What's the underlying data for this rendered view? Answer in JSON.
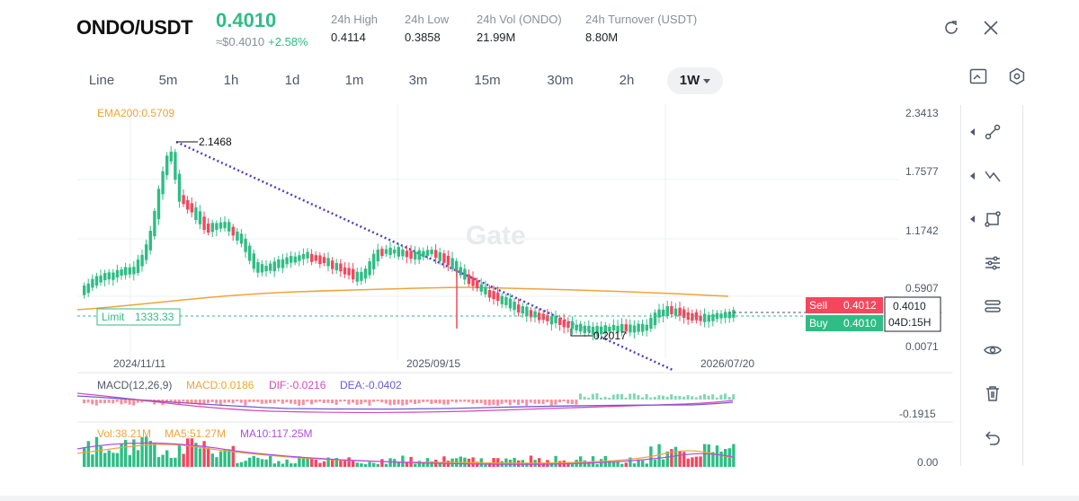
{
  "header": {
    "pair": "ONDO/USDT",
    "last_price": "0.4010",
    "fiat_price": "≈$0.4010",
    "change_pct": "+2.58%",
    "stats": [
      {
        "label": "24h  High",
        "value": "0.4114"
      },
      {
        "label": "24h  Low",
        "value": "0.3858"
      },
      {
        "label": "24h  Vol (ONDO)",
        "value": "21.99M"
      },
      {
        "label": "24h  Turnover (USDT)",
        "value": "8.80M"
      }
    ]
  },
  "timeframes": [
    "Line",
    "5m",
    "1h",
    "1d",
    "1m",
    "3m",
    "15m",
    "30m",
    "2h",
    "1W"
  ],
  "active_timeframe": "1W",
  "chart": {
    "ema_label": "EMA200:0.5709",
    "watermark": "Gate",
    "price_axis": [
      "2.3413",
      "1.7577",
      "1.1742",
      "0.5907",
      "0.0071"
    ],
    "date_axis": [
      "2024/11/11",
      "2025/09/15",
      "2026/07/20"
    ],
    "high_marker": "2.1468",
    "low_marker": "0.2017",
    "limit_label": "Limit",
    "limit_value": "1333.33",
    "sell_label": "Sell",
    "sell_price": "0.4012",
    "buy_label": "Buy",
    "buy_price": "0.4010",
    "current_price": "0.4010",
    "countdown": "04D:15H",
    "colors": {
      "up": "#2fbd85",
      "down": "#f6465d",
      "ema": "#f0a33a",
      "trend": "#4f3fbf"
    }
  },
  "macd": {
    "title": "MACD(12,26,9)",
    "macd": "MACD:0.0186",
    "dif": "DIF:-0.0216",
    "dea": "DEA:-0.0402",
    "axis": "-0.1915"
  },
  "volume": {
    "vol": "Vol:38.21M",
    "ma5": "MA5:51.27M",
    "ma10": "MA10:117.25M",
    "axis": "0.00"
  }
}
